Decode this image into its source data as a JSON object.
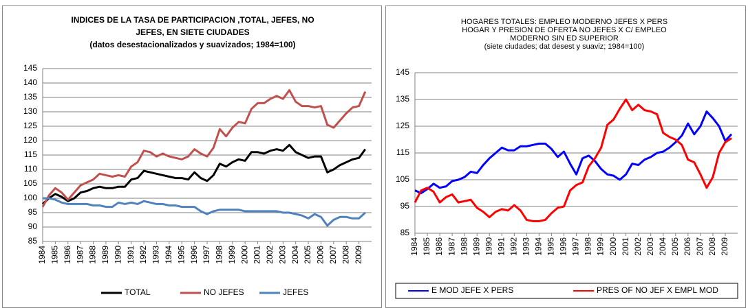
{
  "chart_data": [
    {
      "type": "line",
      "title": [
        "INDICES DE LA TASA DE PARTICIPACION ,TOTAL, JEFES, NO",
        "JEFES, EN SIETE CIUDADES",
        "(datos desestacionalizados y suavizados; 1984=100)"
      ],
      "x": [
        1984,
        1984.5,
        1985,
        1985.5,
        1986,
        1986.5,
        1987,
        1987.5,
        1988,
        1988.5,
        1989,
        1989.5,
        1990,
        1990.5,
        1991,
        1991.5,
        1992,
        1992.5,
        1993,
        1993.5,
        1994,
        1994.5,
        1995,
        1995.5,
        1996,
        1996.5,
        1997,
        1997.5,
        1998,
        1998.5,
        1999,
        1999.5,
        2000,
        2000.5,
        2001,
        2001.5,
        2002,
        2002.5,
        2003,
        2003.5,
        2004,
        2004.5,
        2005,
        2005.5,
        2006,
        2006.5,
        2007,
        2007.5,
        2008,
        2008.5,
        2009,
        2009.5
      ],
      "xlim": [
        1984,
        2010
      ],
      "xticks": [
        1984,
        1985,
        1986,
        1987,
        1988,
        1989,
        1990,
        1991,
        1992,
        1993,
        1994,
        1995,
        1996,
        1997,
        1998,
        1999,
        2000,
        2001,
        2002,
        2003,
        2004,
        2005,
        2006,
        2007,
        2008,
        2009
      ],
      "ylim": [
        85,
        145
      ],
      "yticks": [
        85,
        90,
        95,
        100,
        105,
        110,
        115,
        120,
        125,
        130,
        135,
        140,
        145
      ],
      "grid": true,
      "legend": "bottom",
      "series": [
        {
          "name": "TOTAL",
          "color": "#000000",
          "values": [
            98,
            100,
            101.5,
            100.5,
            99,
            100,
            102,
            102.5,
            103.5,
            104,
            103.5,
            103.5,
            104,
            104,
            106.5,
            107,
            109.5,
            109,
            108.5,
            108,
            107.5,
            107,
            107,
            106.5,
            109,
            107,
            106,
            108,
            112,
            111,
            112.5,
            113.5,
            113,
            116,
            116,
            115.5,
            116.5,
            117,
            116.5,
            118.5,
            116,
            115,
            114,
            114.5,
            114.5,
            109,
            110,
            111.5,
            112.5,
            113.5,
            114,
            117
          ]
        },
        {
          "name": "NO JEFES",
          "color": "#c0504d",
          "values": [
            97,
            101,
            103.5,
            102,
            99.5,
            102,
            104.5,
            105.5,
            106.5,
            108.5,
            108,
            107.5,
            108,
            107.5,
            111,
            112.5,
            116.5,
            116,
            114.5,
            115.5,
            114.5,
            114,
            113.5,
            114.5,
            117,
            115.5,
            114.5,
            117.5,
            124,
            121.5,
            124.5,
            126.5,
            126,
            131,
            133,
            133,
            134.5,
            135.5,
            134.5,
            137.5,
            133.5,
            132,
            132,
            131.5,
            132,
            125.5,
            124.5,
            127,
            129.5,
            131.5,
            132,
            137
          ]
        },
        {
          "name": "JEFES",
          "color": "#4f81bd",
          "values": [
            100,
            100,
            99.5,
            98.5,
            98,
            98,
            98,
            98,
            97.5,
            97.5,
            97,
            97,
            98.5,
            98,
            98.5,
            98,
            99,
            98.5,
            98,
            98,
            97.5,
            97.5,
            97,
            97,
            97,
            95.5,
            94.5,
            95.5,
            96,
            96,
            96,
            96,
            95.5,
            95.5,
            95.5,
            95.5,
            95.5,
            95.5,
            95,
            95,
            94.5,
            94,
            93,
            94.5,
            93.5,
            90.5,
            92.5,
            93.5,
            93.5,
            93,
            93,
            95
          ]
        }
      ]
    },
    {
      "type": "line",
      "title": [
        "HOGARES TOTALES:  EMPLEO MODERNO JEFES X PERS",
        "HOGAR Y PRESION  DE OFERTA NO JEFES X C/ EMPLEO",
        "MODERNO SIN ED SUPERIOR",
        "(siete ciudades; dat desest y suaviz; 1984=100)"
      ],
      "x": [
        1984,
        1984.5,
        1985,
        1985.5,
        1986,
        1986.5,
        1987,
        1987.5,
        1988,
        1988.5,
        1989,
        1989.5,
        1990,
        1990.5,
        1991,
        1991.5,
        1992,
        1992.5,
        1993,
        1993.5,
        1994,
        1994.5,
        1995,
        1995.5,
        1996,
        1996.5,
        1997,
        1997.5,
        1998,
        1998.5,
        1999,
        1999.5,
        2000,
        2000.5,
        2001,
        2001.5,
        2002,
        2002.5,
        2003,
        2003.5,
        2004,
        2004.5,
        2005,
        2005.5,
        2006,
        2006.5,
        2007,
        2007.5,
        2008,
        2008.5,
        2009,
        2009.5
      ],
      "xlim": [
        1984,
        2010
      ],
      "xticks": [
        1984,
        1985,
        1986,
        1987,
        1988,
        1989,
        1990,
        1991,
        1992,
        1993,
        1994,
        1995,
        1996,
        1997,
        1998,
        1999,
        2000,
        2001,
        2002,
        2003,
        2004,
        2005,
        2006,
        2007,
        2008,
        2009
      ],
      "ylim": [
        85,
        145
      ],
      "yticks": [
        85,
        95,
        105,
        115,
        125,
        135,
        145
      ],
      "grid": true,
      "legend": "bottom-box",
      "series": [
        {
          "name": "E MOD JEFE X PERS",
          "color": "#0000ff",
          "values": [
            101,
            100,
            101.5,
            103.5,
            102,
            102.5,
            104.5,
            105,
            106,
            108,
            107.5,
            110.5,
            113,
            115,
            117,
            116,
            116,
            117.5,
            117.5,
            118,
            118.5,
            118.5,
            116.5,
            113.5,
            115.5,
            111,
            107,
            113,
            114,
            112,
            109,
            107,
            106.5,
            105,
            107,
            111,
            110.5,
            112.5,
            113.5,
            115,
            115.5,
            117,
            119,
            121.5,
            126,
            122,
            125,
            130.5,
            128,
            125,
            119.5,
            122
          ]
        },
        {
          "name": "PRES OF NO JEF X EMPL MOD",
          "color": "#ff0000",
          "values": [
            96.5,
            101,
            102,
            100.5,
            96.5,
            98.5,
            99.5,
            96.5,
            97,
            97.5,
            94.5,
            93,
            91,
            93,
            94,
            93.5,
            95.5,
            93.5,
            90,
            89.5,
            89.5,
            90,
            92.5,
            94.5,
            95,
            101,
            103,
            104,
            110,
            113,
            117,
            125.5,
            127.5,
            131.5,
            135,
            131,
            133,
            131,
            130.5,
            129.5,
            122.5,
            121,
            120,
            118,
            112.5,
            111.5,
            107,
            102,
            106,
            115,
            119,
            120.5
          ]
        }
      ]
    }
  ]
}
